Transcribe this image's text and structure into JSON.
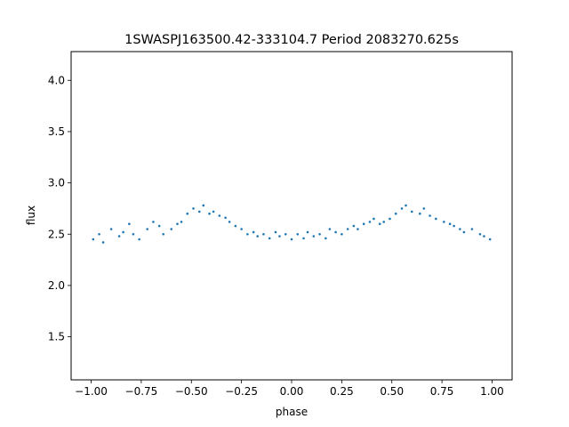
{
  "chart_data": {
    "type": "scatter",
    "title": "1SWASPJ163500.42-333104.7 Period 2083270.625s",
    "xlabel": "phase",
    "ylabel": "flux",
    "xlim": [
      -1.1,
      1.1
    ],
    "ylim": [
      1.08,
      4.28
    ],
    "x_ticks": [
      -1.0,
      -0.75,
      -0.5,
      -0.25,
      0.0,
      0.25,
      0.5,
      0.75,
      1.0
    ],
    "x_tick_labels": [
      "−1.00",
      "−0.75",
      "−0.50",
      "−0.25",
      "0.00",
      "0.25",
      "0.50",
      "0.75",
      "1.00"
    ],
    "y_ticks": [
      1.5,
      2.0,
      2.5,
      3.0,
      3.5,
      4.0
    ],
    "y_tick_labels": [
      "1.5",
      "2.0",
      "2.5",
      "3.0",
      "3.5",
      "4.0"
    ],
    "grid": false,
    "legend": "none",
    "point_color": "#1f77b4",
    "series": [
      {
        "name": "",
        "x": [
          -0.99,
          -0.96,
          -0.94,
          -0.9,
          -0.86,
          -0.84,
          -0.81,
          -0.79,
          -0.76,
          -0.72,
          -0.69,
          -0.66,
          -0.64,
          -0.6,
          -0.57,
          -0.55,
          -0.52,
          -0.49,
          -0.46,
          -0.44,
          -0.41,
          -0.39,
          -0.36,
          -0.33,
          -0.31,
          -0.28,
          -0.25,
          -0.22,
          -0.19,
          -0.17,
          -0.14,
          -0.11,
          -0.08,
          -0.06,
          -0.03,
          0.0,
          0.03,
          0.06,
          0.08,
          0.11,
          0.14,
          0.17,
          0.19,
          0.22,
          0.25,
          0.28,
          0.31,
          0.33,
          0.36,
          0.39,
          0.41,
          0.44,
          0.46,
          0.49,
          0.52,
          0.55,
          0.57,
          0.6,
          0.64,
          0.66,
          0.69,
          0.72,
          0.76,
          0.79,
          0.81,
          0.84,
          0.86,
          0.9,
          0.94,
          0.96,
          0.99
        ],
        "y": [
          2.45,
          2.5,
          2.42,
          2.55,
          2.48,
          2.52,
          2.6,
          2.5,
          2.45,
          2.55,
          2.62,
          2.58,
          2.5,
          2.55,
          2.6,
          2.62,
          2.7,
          2.75,
          2.72,
          2.78,
          2.7,
          2.72,
          2.68,
          2.66,
          2.62,
          2.58,
          2.55,
          2.5,
          2.52,
          2.48,
          2.5,
          2.46,
          2.52,
          2.48,
          2.5,
          2.45,
          2.5,
          2.46,
          2.52,
          2.48,
          2.5,
          2.46,
          2.55,
          2.52,
          2.5,
          2.55,
          2.58,
          2.55,
          2.6,
          2.62,
          2.65,
          2.6,
          2.62,
          2.65,
          2.7,
          2.75,
          2.78,
          2.72,
          2.7,
          2.75,
          2.68,
          2.65,
          2.62,
          2.6,
          2.58,
          2.55,
          2.52,
          2.55,
          2.5,
          2.48,
          2.45
        ]
      }
    ]
  }
}
